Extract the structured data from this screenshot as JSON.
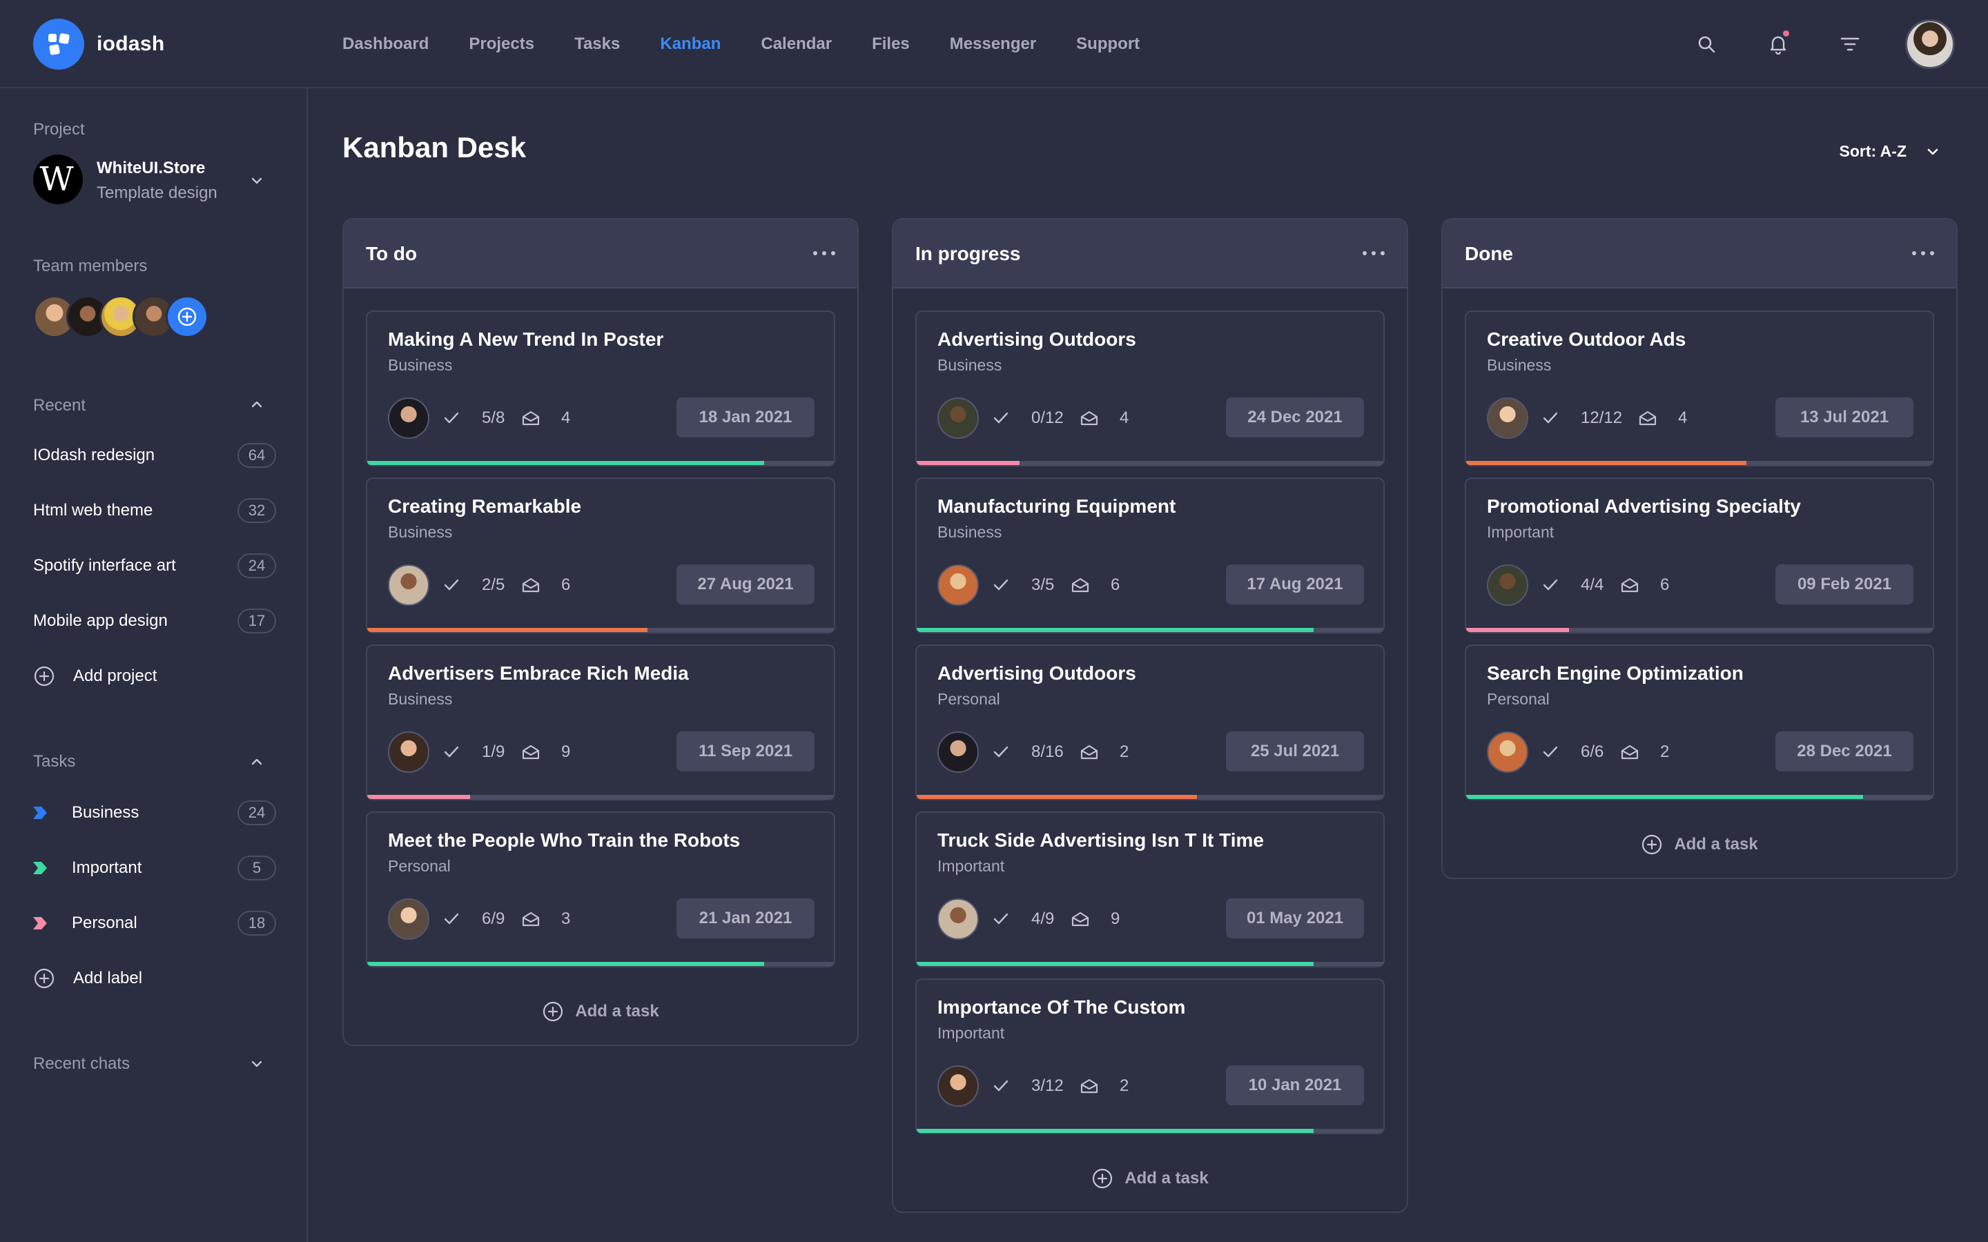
{
  "app": {
    "name": "iodash",
    "colors": {
      "accent": "#2f7cf6",
      "background": "#2b2d40",
      "green": "#3ed8a3",
      "orange": "#f0744a",
      "pink": "#f48ba8"
    }
  },
  "nav": {
    "items": [
      {
        "label": "Dashboard"
      },
      {
        "label": "Projects"
      },
      {
        "label": "Tasks"
      },
      {
        "label": "Kanban",
        "active": true
      },
      {
        "label": "Calendar"
      },
      {
        "label": "Files"
      },
      {
        "label": "Messenger"
      },
      {
        "label": "Support"
      }
    ],
    "icons": [
      "search-icon",
      "bell-icon",
      "filter-icon"
    ]
  },
  "sidebar": {
    "project_label": "Project",
    "project": {
      "name": "WhiteUI.Store",
      "subtitle": "Template design",
      "logo_letter": "W"
    },
    "team_label": "Team members",
    "recent_label": "Recent",
    "recent": [
      {
        "label": "IOdash redesign",
        "count": "64"
      },
      {
        "label": "Html web theme",
        "count": "32"
      },
      {
        "label": "Spotify interface art",
        "count": "24"
      },
      {
        "label": "Mobile app design",
        "count": "17"
      }
    ],
    "add_project": "Add project",
    "tasks_label": "Tasks",
    "tasks": [
      {
        "label": "Business",
        "count": "24",
        "color": "#2f7cf6"
      },
      {
        "label": "Important",
        "count": "5",
        "color": "#3ed8a3"
      },
      {
        "label": "Personal",
        "count": "18",
        "color": "#f48ba8"
      }
    ],
    "add_label": "Add label",
    "recent_chats_label": "Recent chats"
  },
  "main": {
    "title": "Kanban Desk",
    "sort_label": "Sort: A-Z",
    "add_task": "Add a task",
    "columns": [
      {
        "title": "To do",
        "cards": [
          {
            "title": "Making A New Trend In Poster",
            "category": "Business",
            "checks": "5/8",
            "messages": "4",
            "date": "18 Jan 2021",
            "progress": 0.85,
            "color": "#3ed8a3"
          },
          {
            "title": "Creating Remarkable",
            "category": "Business",
            "checks": "2/5",
            "messages": "6",
            "date": "27 Aug 2021",
            "progress": 0.6,
            "color": "#f0744a"
          },
          {
            "title": "Advertisers Embrace Rich Media",
            "category": "Business",
            "checks": "1/9",
            "messages": "9",
            "date": "11 Sep 2021",
            "progress": 0.22,
            "color": "#f48ba8"
          },
          {
            "title": "Meet the People Who Train the Robots",
            "category": "Personal",
            "checks": "6/9",
            "messages": "3",
            "date": "21 Jan 2021",
            "progress": 0.85,
            "color": "#3ed8a3"
          }
        ]
      },
      {
        "title": "In progress",
        "cards": [
          {
            "title": "Advertising Outdoors",
            "category": "Business",
            "checks": "0/12",
            "messages": "4",
            "date": "24 Dec 2021",
            "progress": 0.22,
            "color": "#f48ba8"
          },
          {
            "title": "Manufacturing Equipment",
            "category": "Business",
            "checks": "3/5",
            "messages": "6",
            "date": "17 Aug 2021",
            "progress": 0.85,
            "color": "#3ed8a3"
          },
          {
            "title": "Advertising Outdoors",
            "category": "Personal",
            "checks": "8/16",
            "messages": "2",
            "date": "25 Jul 2021",
            "progress": 0.6,
            "color": "#f0744a"
          },
          {
            "title": "Truck Side Advertising Isn T It Time",
            "category": "Important",
            "checks": "4/9",
            "messages": "9",
            "date": "01 May 2021",
            "progress": 0.85,
            "color": "#3ed8a3"
          },
          {
            "title": "Importance Of The Custom",
            "category": "Important",
            "checks": "3/12",
            "messages": "2",
            "date": "10 Jan 2021",
            "progress": 0.85,
            "color": "#3ed8a3"
          }
        ]
      },
      {
        "title": "Done",
        "cards": [
          {
            "title": "Creative Outdoor Ads",
            "category": "Business",
            "checks": "12/12",
            "messages": "4",
            "date": "13 Jul 2021",
            "progress": 0.6,
            "color": "#f0744a"
          },
          {
            "title": "Promotional Advertising Specialty",
            "category": "Important",
            "checks": "4/4",
            "messages": "6",
            "date": "09 Feb 2021",
            "progress": 0.22,
            "color": "#f48ba8"
          },
          {
            "title": "Search Engine Optimization",
            "category": "Personal",
            "checks": "6/6",
            "messages": "2",
            "date": "28 Dec 2021",
            "progress": 0.85,
            "color": "#3ed8a3"
          }
        ]
      }
    ]
  }
}
